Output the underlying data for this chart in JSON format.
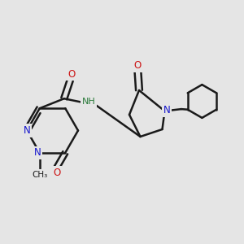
{
  "background_color": "#e5e5e5",
  "bond_color": "#1a1a1a",
  "bond_width": 1.8,
  "dbo": 0.012,
  "atom_colors": {
    "N": "#1414cc",
    "O": "#cc1414",
    "NH": "#2a7a3a",
    "C": "#1a1a1a"
  },
  "fs": 8.5,
  "fig_width": 3.0,
  "fig_height": 3.0,
  "dpi": 100,
  "xlim": [
    0,
    1
  ],
  "ylim": [
    0,
    1
  ]
}
